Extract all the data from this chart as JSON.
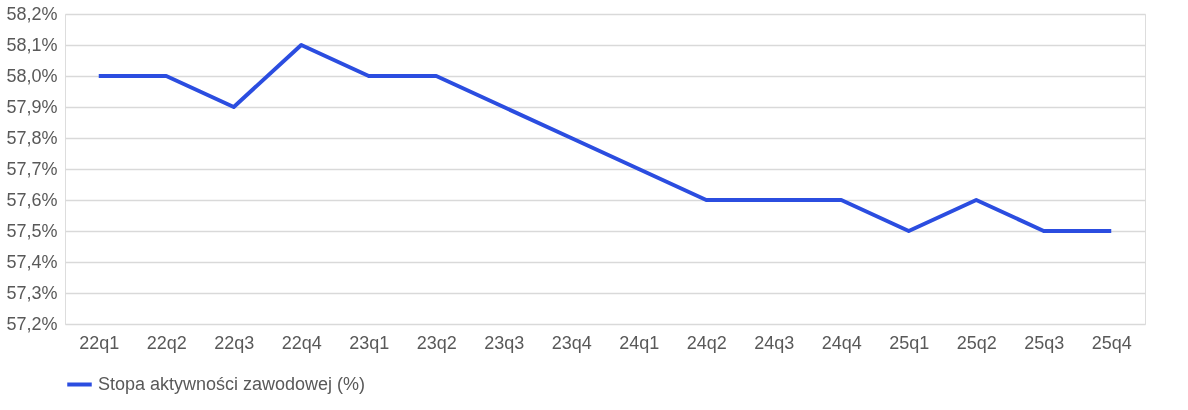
{
  "chart_data": {
    "type": "line",
    "categories": [
      "22q1",
      "22q2",
      "22q3",
      "22q4",
      "23q1",
      "23q2",
      "23q3",
      "23q4",
      "24q1",
      "24q2",
      "24q3",
      "24q4",
      "25q1",
      "25q2",
      "25q3",
      "25q4"
    ],
    "series": [
      {
        "name": "Stopa aktywności zawodowej (%)",
        "color": "#2b4de0",
        "values": [
          58.0,
          58.0,
          57.9,
          58.1,
          58.0,
          58.0,
          57.9,
          57.8,
          57.7,
          57.6,
          57.6,
          57.6,
          57.5,
          57.6,
          57.5,
          57.5
        ]
      }
    ],
    "ylim": [
      57.2,
      58.2
    ],
    "yticks": [
      {
        "value": 57.2,
        "label": "57,2%"
      },
      {
        "value": 57.3,
        "label": "57,3%"
      },
      {
        "value": 57.4,
        "label": "57,4%"
      },
      {
        "value": 57.5,
        "label": "57,5%"
      },
      {
        "value": 57.6,
        "label": "57,6%"
      },
      {
        "value": 57.7,
        "label": "57,7%"
      },
      {
        "value": 57.8,
        "label": "57,8%"
      },
      {
        "value": 57.9,
        "label": "57,9%"
      },
      {
        "value": 58.0,
        "label": "58,0%"
      },
      {
        "value": 58.1,
        "label": "58,1%"
      },
      {
        "value": 58.2,
        "label": "58,2%"
      }
    ],
    "grid": "y",
    "legend": "bottom",
    "marker": "none",
    "line_style": "solid"
  }
}
